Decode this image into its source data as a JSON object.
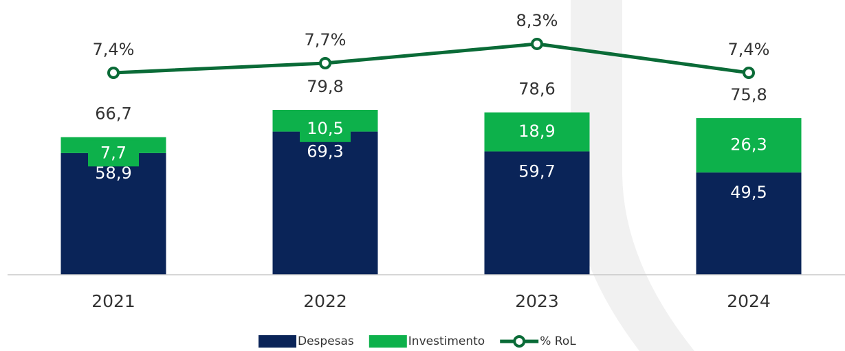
{
  "chart_data": {
    "type": "bar",
    "stacked": true,
    "categories": [
      "2021",
      "2022",
      "2023",
      "2024"
    ],
    "series": [
      {
        "name": "Despesas",
        "color": "#0a2458",
        "values": [
          58.9,
          69.3,
          59.7,
          49.5
        ],
        "value_labels": [
          "58,9",
          "69,3",
          "59,7",
          "49,5"
        ]
      },
      {
        "name": "Investimento",
        "color": "#0db14b",
        "values": [
          7.7,
          10.5,
          18.9,
          26.3
        ],
        "value_labels": [
          "7,7",
          "10,5",
          "18,9",
          "26,3"
        ]
      },
      {
        "name": "% RoL",
        "type": "line",
        "axis": "y2",
        "color": "#0a6b37",
        "values": [
          7.4,
          7.7,
          8.3,
          7.4
        ],
        "value_labels": [
          "7,4%",
          "7,7%",
          "8,3%",
          "7,4%"
        ]
      }
    ],
    "totals": [
      66.7,
      79.8,
      78.6,
      75.8
    ],
    "total_labels": [
      "66,7",
      "79,8",
      "78,6",
      "75,8"
    ],
    "ylim": [
      0,
      133
    ],
    "y2lim": [
      1.1,
      9.67
    ]
  }
}
